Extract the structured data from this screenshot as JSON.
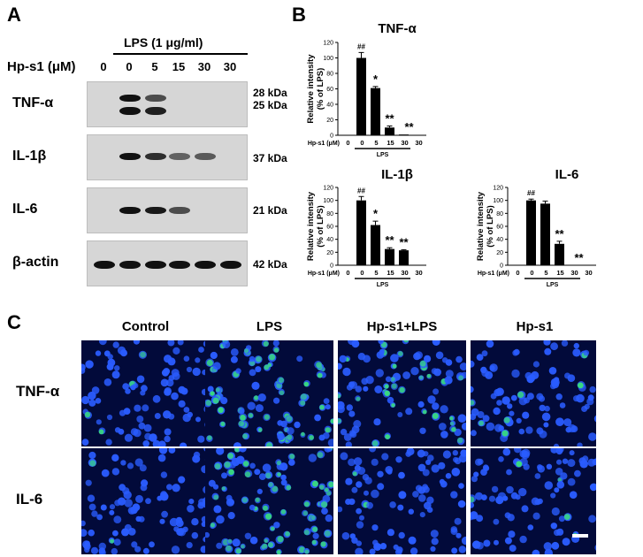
{
  "panelA": {
    "letter": "A",
    "treatment_header": "LPS (1 μg/ml)",
    "dose_label": "Hp-s1 (μM)",
    "lanes": [
      "0",
      "0",
      "5",
      "15",
      "30",
      "30"
    ],
    "blots": [
      {
        "label": "TNF-α",
        "kda": [
          "28 kDa",
          "25 kDa"
        ]
      },
      {
        "label": "IL-1β",
        "kda": [
          "37 kDa"
        ]
      },
      {
        "label": "IL-6",
        "kda": [
          "21 kDa"
        ]
      },
      {
        "label": "β-actin",
        "kda": [
          "42 kDa"
        ]
      }
    ],
    "band_intensity": {
      "TNF-α_upper": [
        0,
        1.0,
        0.6,
        0,
        0,
        0
      ],
      "TNF-α_lower": [
        0,
        1.0,
        0.9,
        0,
        0,
        0
      ],
      "IL-1β": [
        0,
        1.0,
        0.8,
        0.45,
        0.5,
        0
      ],
      "IL-6": [
        0,
        1.0,
        0.95,
        0.6,
        0,
        0
      ],
      "β-actin": [
        1,
        1,
        1,
        1,
        1,
        1
      ]
    }
  },
  "panelB": {
    "letter": "B",
    "x_prefix": "Hp-s1 (μM)",
    "lps_label": "LPS",
    "chart_data": [
      {
        "type": "bar",
        "title": "TNF-α",
        "ylabel": "Relative intensity\n(% of LPS)",
        "categories": [
          "0",
          "0",
          "5",
          "15",
          "30",
          "30"
        ],
        "values": [
          0,
          100,
          61,
          10,
          1,
          0
        ],
        "errors": [
          0,
          7,
          2,
          2,
          0,
          0
        ],
        "annotations": [
          "",
          "##",
          "*",
          "**",
          "**",
          ""
        ],
        "ylim": [
          0,
          120
        ],
        "yticks": [
          0,
          20,
          40,
          60,
          80,
          100,
          120
        ]
      },
      {
        "type": "bar",
        "title": "IL-1β",
        "ylabel": "Relative intensity\n(% of LPS)",
        "categories": [
          "0",
          "0",
          "5",
          "15",
          "30",
          "30"
        ],
        "values": [
          0,
          100,
          62,
          25,
          23,
          0
        ],
        "errors": [
          0,
          6,
          6,
          2,
          1,
          0
        ],
        "annotations": [
          "",
          "##",
          "*",
          "**",
          "**",
          ""
        ],
        "ylim": [
          0,
          120
        ],
        "yticks": [
          0,
          20,
          40,
          60,
          80,
          100,
          120
        ]
      },
      {
        "type": "bar",
        "title": "IL-6",
        "ylabel": "Relative intensity\n(% of LPS)",
        "categories": [
          "0",
          "0",
          "5",
          "15",
          "30",
          "30"
        ],
        "values": [
          0,
          100,
          95,
          33,
          0,
          0
        ],
        "errors": [
          0,
          2,
          4,
          4,
          0,
          0
        ],
        "annotations": [
          "",
          "##",
          "",
          "**",
          "**",
          ""
        ],
        "ylim": [
          0,
          120
        ],
        "yticks": [
          0,
          20,
          40,
          60,
          80,
          100,
          120
        ]
      }
    ]
  },
  "panelC": {
    "letter": "C",
    "columns": [
      "Control",
      "LPS",
      "Hp-s1+LPS",
      "Hp-s1"
    ],
    "rows": [
      "TNF-α",
      "IL-6"
    ],
    "green_level": [
      [
        0.05,
        0.9,
        0.35,
        0.05
      ],
      [
        0.05,
        0.85,
        0.05,
        0.05
      ]
    ],
    "colors": {
      "nucleus": "#2a5cff",
      "background": "#020a3a",
      "stain": "#39e07a"
    }
  }
}
